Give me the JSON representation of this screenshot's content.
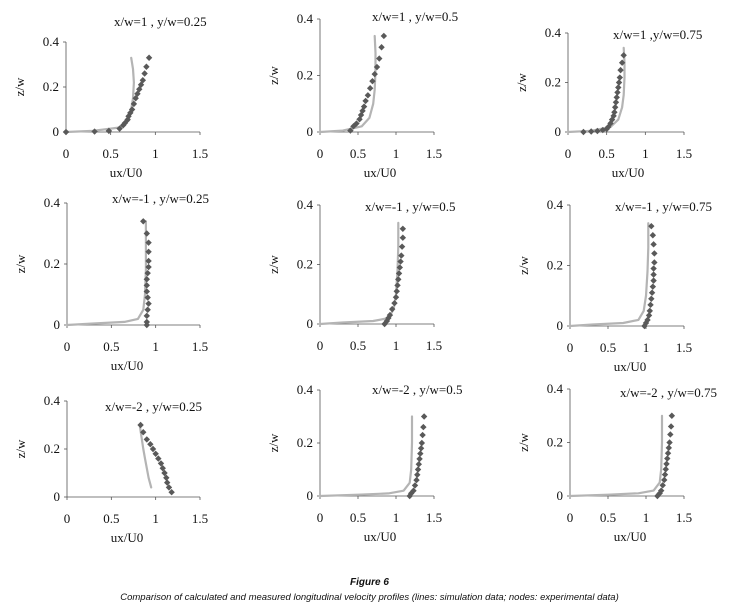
{
  "figure": {
    "title": "Figure 6",
    "caption": "Comparison of calculated and measured longitudinal velocity profiles (lines: simulation data; nodes: experimental data)"
  },
  "colors": {
    "simulation_line": "#b4b4b4",
    "experimental_marker": "#595959",
    "axis": "#555555"
  },
  "chart_data": [
    {
      "type": "scatter",
      "title": "x/w=1 , y/w=0.25",
      "xlabel": "ux/U0",
      "ylabel": "z/w",
      "xlim": [
        0,
        1.5
      ],
      "ylim": [
        0,
        0.4
      ],
      "xticks": [
        "0",
        "0.5",
        "1",
        "1.5"
      ],
      "yticks": [
        "0",
        "0.2",
        "0.4"
      ],
      "grid": false,
      "series": [
        {
          "kind": "line",
          "x": [
            0,
            0.3,
            0.6,
            0.7,
            0.73,
            0.75,
            0.76,
            0.75,
            0.73
          ],
          "y": [
            0,
            0.005,
            0.02,
            0.05,
            0.1,
            0.15,
            0.22,
            0.28,
            0.33
          ]
        },
        {
          "kind": "markers",
          "x": [
            0,
            0.32,
            0.48,
            0.6,
            0.64,
            0.66,
            0.69,
            0.7,
            0.72,
            0.74,
            0.76,
            0.78,
            0.8,
            0.82,
            0.84,
            0.86,
            0.88,
            0.9,
            0.93
          ],
          "y": [
            0,
            0.002,
            0.005,
            0.015,
            0.03,
            0.04,
            0.055,
            0.07,
            0.085,
            0.1,
            0.125,
            0.15,
            0.17,
            0.19,
            0.21,
            0.23,
            0.26,
            0.29,
            0.33
          ]
        }
      ]
    },
    {
      "type": "scatter",
      "title": "x/w=1 , y/w=0.5",
      "xlabel": "ux/U0",
      "ylabel": "z/w",
      "xlim": [
        0,
        1.5
      ],
      "ylim": [
        0,
        0.4
      ],
      "xticks": [
        "0",
        "0.5",
        "1",
        "1.5"
      ],
      "yticks": [
        "0",
        "0.2",
        "0.4"
      ],
      "grid": false,
      "series": [
        {
          "kind": "line",
          "x": [
            0,
            0.3,
            0.55,
            0.65,
            0.7,
            0.72,
            0.73,
            0.73,
            0.72
          ],
          "y": [
            0,
            0.005,
            0.02,
            0.05,
            0.1,
            0.15,
            0.22,
            0.28,
            0.34
          ]
        },
        {
          "kind": "markers",
          "x": [
            0.4,
            0.44,
            0.48,
            0.52,
            0.54,
            0.56,
            0.58,
            0.6,
            0.63,
            0.66,
            0.69,
            0.72,
            0.75,
            0.78,
            0.81,
            0.84
          ],
          "y": [
            0.005,
            0.02,
            0.03,
            0.045,
            0.06,
            0.075,
            0.09,
            0.11,
            0.13,
            0.155,
            0.18,
            0.205,
            0.23,
            0.26,
            0.3,
            0.34
          ]
        }
      ]
    },
    {
      "type": "scatter",
      "title": "x/w=1 ,y/w=0.75",
      "xlabel": "ux/U0",
      "ylabel": "z/w",
      "xlim": [
        0,
        1.5
      ],
      "ylim": [
        0,
        0.4
      ],
      "xticks": [
        "0",
        "0.5",
        "1",
        "1.5"
      ],
      "yticks": [
        "0",
        "0.2",
        "0.4"
      ],
      "grid": false,
      "series": [
        {
          "kind": "line",
          "x": [
            0,
            0.3,
            0.55,
            0.65,
            0.7,
            0.72,
            0.73,
            0.73,
            0.72
          ],
          "y": [
            0,
            0.005,
            0.02,
            0.05,
            0.1,
            0.15,
            0.22,
            0.28,
            0.34
          ]
        },
        {
          "kind": "markers",
          "x": [
            0.2,
            0.3,
            0.38,
            0.45,
            0.5,
            0.52,
            0.55,
            0.57,
            0.59,
            0.6,
            0.61,
            0.62,
            0.63,
            0.64,
            0.65,
            0.66,
            0.67,
            0.68,
            0.7,
            0.72
          ],
          "y": [
            0,
            0.002,
            0.004,
            0.008,
            0.012,
            0.02,
            0.035,
            0.05,
            0.065,
            0.08,
            0.1,
            0.12,
            0.14,
            0.16,
            0.18,
            0.2,
            0.22,
            0.25,
            0.28,
            0.31
          ]
        }
      ]
    },
    {
      "type": "scatter",
      "title": "x/w=-1 , y/w=0.25",
      "xlabel": "ux/U0",
      "ylabel": "z/w",
      "xlim": [
        0,
        1.5
      ],
      "ylim": [
        0,
        0.4
      ],
      "xticks": [
        "0",
        "0.5",
        "1",
        "1.5"
      ],
      "yticks": [
        "0",
        "0.2",
        "0.4"
      ],
      "grid": false,
      "series": [
        {
          "kind": "line",
          "x": [
            0,
            0.3,
            0.65,
            0.8,
            0.86,
            0.88,
            0.89,
            0.89,
            0.89
          ],
          "y": [
            0,
            0.005,
            0.01,
            0.02,
            0.05,
            0.1,
            0.18,
            0.26,
            0.34
          ]
        },
        {
          "kind": "markers",
          "x": [
            0.9,
            0.9,
            0.9,
            0.91,
            0.92,
            0.91,
            0.9,
            0.9,
            0.9,
            0.91,
            0.92,
            0.92,
            0.92,
            0.92,
            0.9,
            0.86
          ],
          "y": [
            0,
            0.01,
            0.03,
            0.05,
            0.07,
            0.09,
            0.11,
            0.13,
            0.15,
            0.17,
            0.19,
            0.21,
            0.24,
            0.27,
            0.3,
            0.34
          ]
        }
      ]
    },
    {
      "type": "scatter",
      "title": "x/w=-1 , y/w=0.5",
      "xlabel": "",
      "ylabel": "z/w",
      "xlim": [
        0,
        1.5
      ],
      "ylim": [
        0,
        0.4
      ],
      "xticks": [
        "0",
        "0.5",
        "1",
        "1.5"
      ],
      "yticks": [
        "0",
        "0.2",
        "0.4"
      ],
      "grid": false,
      "series": [
        {
          "kind": "line",
          "x": [
            0,
            0.3,
            0.7,
            0.9,
            0.97,
            1.0,
            1.02,
            1.03,
            1.03
          ],
          "y": [
            0,
            0.005,
            0.01,
            0.02,
            0.05,
            0.1,
            0.18,
            0.26,
            0.34
          ]
        },
        {
          "kind": "markers",
          "x": [
            0.85,
            0.88,
            0.9,
            0.92,
            0.95,
            0.98,
            1.0,
            1.01,
            1.02,
            1.03,
            1.04,
            1.05,
            1.06,
            1.07,
            1.08,
            1.09,
            1.09
          ],
          "y": [
            0,
            0.01,
            0.02,
            0.03,
            0.05,
            0.07,
            0.09,
            0.11,
            0.13,
            0.15,
            0.17,
            0.19,
            0.21,
            0.23,
            0.26,
            0.29,
            0.32
          ]
        }
      ]
    },
    {
      "type": "scatter",
      "title": "x/w=-1 , y/w=0.75",
      "xlabel": "ux/U0",
      "ylabel": "z/w",
      "xlim": [
        0,
        1.5
      ],
      "ylim": [
        0,
        0.4
      ],
      "xticks": [
        "0",
        "0.5",
        "1",
        "1.5"
      ],
      "yticks": [
        "0",
        "0.2",
        "0.4"
      ],
      "grid": false,
      "series": [
        {
          "kind": "line",
          "x": [
            0,
            0.3,
            0.7,
            0.9,
            0.97,
            1.0,
            1.02,
            1.03,
            1.03
          ],
          "y": [
            0,
            0.005,
            0.01,
            0.02,
            0.05,
            0.1,
            0.18,
            0.26,
            0.34
          ]
        },
        {
          "kind": "markers",
          "x": [
            0.98,
            1.0,
            1.02,
            1.04,
            1.05,
            1.06,
            1.07,
            1.08,
            1.09,
            1.1,
            1.1,
            1.1,
            1.11,
            1.11,
            1.1,
            1.09,
            1.07
          ],
          "y": [
            0,
            0.01,
            0.02,
            0.035,
            0.05,
            0.07,
            0.09,
            0.11,
            0.13,
            0.15,
            0.17,
            0.19,
            0.21,
            0.24,
            0.27,
            0.3,
            0.33
          ]
        }
      ]
    },
    {
      "type": "scatter",
      "title": "x/w=-2 , y/w=0.25",
      "xlabel": "ux/U0",
      "ylabel": "z/w",
      "xlim": [
        0,
        1.5
      ],
      "ylim": [
        0,
        0.4
      ],
      "xticks": [
        "0",
        "0.5",
        "1",
        "1.5"
      ],
      "yticks": [
        "0",
        "0.2",
        "0.4"
      ],
      "grid": false,
      "series": [
        {
          "kind": "line",
          "x": [
            0.95,
            0.92,
            0.9,
            0.88,
            0.86,
            0.84,
            0.82
          ],
          "y": [
            0.04,
            0.08,
            0.12,
            0.16,
            0.2,
            0.25,
            0.3
          ]
        },
        {
          "kind": "markers",
          "x": [
            1.18,
            1.15,
            1.13,
            1.12,
            1.1,
            1.08,
            1.06,
            1.03,
            1.0,
            0.97,
            0.94,
            0.9,
            0.86,
            0.83
          ],
          "y": [
            0.02,
            0.04,
            0.06,
            0.08,
            0.1,
            0.12,
            0.14,
            0.16,
            0.18,
            0.2,
            0.22,
            0.24,
            0.27,
            0.3
          ]
        }
      ]
    },
    {
      "type": "scatter",
      "title": "x/w=-2 , y/w=0.5",
      "xlabel": "ux/U0",
      "ylabel": "z/w",
      "xlim": [
        0,
        1.5
      ],
      "ylim": [
        0,
        0.4
      ],
      "xticks": [
        "0",
        "0.5",
        "1",
        "1.5"
      ],
      "yticks": [
        "0",
        "0.2",
        "0.4"
      ],
      "grid": false,
      "series": [
        {
          "kind": "line",
          "x": [
            0,
            0.5,
            0.9,
            1.1,
            1.18,
            1.2,
            1.21,
            1.21
          ],
          "y": [
            0,
            0.005,
            0.01,
            0.02,
            0.05,
            0.1,
            0.2,
            0.3
          ]
        },
        {
          "kind": "markers",
          "x": [
            1.18,
            1.2,
            1.23,
            1.25,
            1.27,
            1.28,
            1.29,
            1.3,
            1.31,
            1.32,
            1.33,
            1.34,
            1.35,
            1.36,
            1.37
          ],
          "y": [
            0,
            0.01,
            0.02,
            0.04,
            0.06,
            0.08,
            0.1,
            0.12,
            0.14,
            0.16,
            0.18,
            0.2,
            0.23,
            0.26,
            0.3
          ]
        }
      ]
    },
    {
      "type": "scatter",
      "title": "x/w=-2 , y/w=0.75",
      "xlabel": "ux/U0",
      "ylabel": "z/w",
      "xlim": [
        0,
        1.5
      ],
      "ylim": [
        0,
        0.4
      ],
      "xticks": [
        "0",
        "0.5",
        "1",
        "1.5"
      ],
      "yticks": [
        "0",
        "0.2",
        "0.4"
      ],
      "grid": false,
      "series": [
        {
          "kind": "line",
          "x": [
            0,
            0.5,
            0.9,
            1.1,
            1.18,
            1.2,
            1.21,
            1.21
          ],
          "y": [
            0,
            0.005,
            0.01,
            0.02,
            0.05,
            0.1,
            0.2,
            0.3
          ]
        },
        {
          "kind": "markers",
          "x": [
            1.15,
            1.18,
            1.2,
            1.22,
            1.24,
            1.25,
            1.26,
            1.27,
            1.28,
            1.29,
            1.3,
            1.31,
            1.32,
            1.33,
            1.34
          ],
          "y": [
            0,
            0.01,
            0.02,
            0.04,
            0.06,
            0.08,
            0.1,
            0.12,
            0.14,
            0.16,
            0.18,
            0.2,
            0.23,
            0.26,
            0.3
          ]
        }
      ]
    }
  ]
}
